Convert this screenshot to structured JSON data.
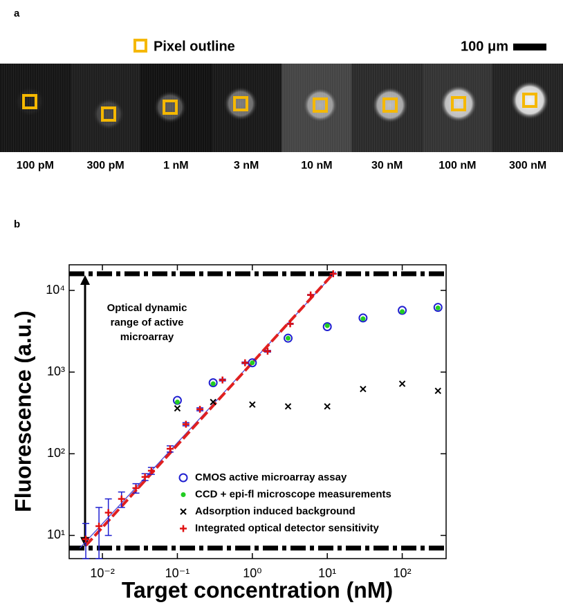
{
  "panel_a": {
    "label": "a",
    "legend": "Pixel outline",
    "scale_bar": "100 μm",
    "labels": [
      "100 pM",
      "300 pM",
      "1 nM",
      "3 nM",
      "10 nM",
      "30 nM",
      "100 nM",
      "300 nM"
    ]
  },
  "chart_data": {
    "type": "scatter",
    "panel_label": "b",
    "xlabel": "Target concentration (nM)",
    "ylabel": "Fluorescence (a.u.)",
    "annotation": "Optical dynamic range of active microarray",
    "log_x": true,
    "log_y": true,
    "xlim": [
      0.0036,
      385
    ],
    "ylim": [
      5.2,
      20600
    ],
    "xticks": [
      {
        "value": 0.01,
        "label": "10⁻²"
      },
      {
        "value": 0.1,
        "label": "10⁻¹"
      },
      {
        "value": 1,
        "label": "10⁰"
      },
      {
        "value": 10,
        "label": "10¹"
      },
      {
        "value": 100,
        "label": "10²"
      }
    ],
    "yticks": [
      {
        "value": 10,
        "label": "10¹"
      },
      {
        "value": 100,
        "label": "10²"
      },
      {
        "value": 1000,
        "label": "10³"
      },
      {
        "value": 10000,
        "label": "10⁴"
      }
    ],
    "range_lines": [
      16000,
      7
    ],
    "series": [
      {
        "name": "CMOS active microarray assay",
        "color": "#1f1fd0",
        "marker": "circle-open",
        "x": [
          0.1,
          0.3,
          1,
          3,
          10,
          30,
          100,
          300
        ],
        "values": [
          450,
          740,
          1300,
          2600,
          3600,
          4600,
          5700,
          6200
        ]
      },
      {
        "name": "CCD + epi-fl microscope measurements",
        "color": "#22cc22",
        "marker": "dot",
        "x": [
          0.1,
          0.3,
          1,
          3,
          10,
          30,
          100,
          300
        ],
        "values": [
          430,
          720,
          1300,
          2600,
          3700,
          4500,
          5500,
          6100
        ]
      },
      {
        "name": "Adsorption induced background",
        "color": "#000000",
        "marker": "x",
        "x": [
          0.1,
          0.3,
          1,
          3,
          10,
          30,
          100,
          300
        ],
        "values": [
          360,
          430,
          400,
          380,
          380,
          620,
          720,
          590
        ]
      },
      {
        "name": "Integrated optical detector sensitivity",
        "color": "#e01010",
        "marker": "plus",
        "error_color": "#1f1fd0",
        "x": [
          0.006,
          0.009,
          0.012,
          0.018,
          0.028,
          0.037,
          0.045,
          0.08,
          0.13,
          0.2,
          0.4,
          0.8,
          1.6,
          3.2,
          6,
          12
        ],
        "values": [
          9,
          13,
          19,
          28,
          38,
          52,
          62,
          115,
          230,
          350,
          800,
          1300,
          1800,
          3900,
          8800,
          16000
        ],
        "errors": [
          5,
          9,
          9,
          6,
          5,
          5,
          6,
          10,
          10,
          15,
          20,
          30,
          40,
          60,
          100,
          150
        ]
      }
    ],
    "lines": [
      {
        "x": [
          0.005,
          13
        ],
        "values": [
          7,
          17000
        ],
        "color": "#4040d8",
        "dash": "solid"
      },
      {
        "x": [
          0.006,
          12
        ],
        "values": [
          7.5,
          16000
        ],
        "color": "#e02020",
        "dash": "dashed"
      }
    ]
  }
}
